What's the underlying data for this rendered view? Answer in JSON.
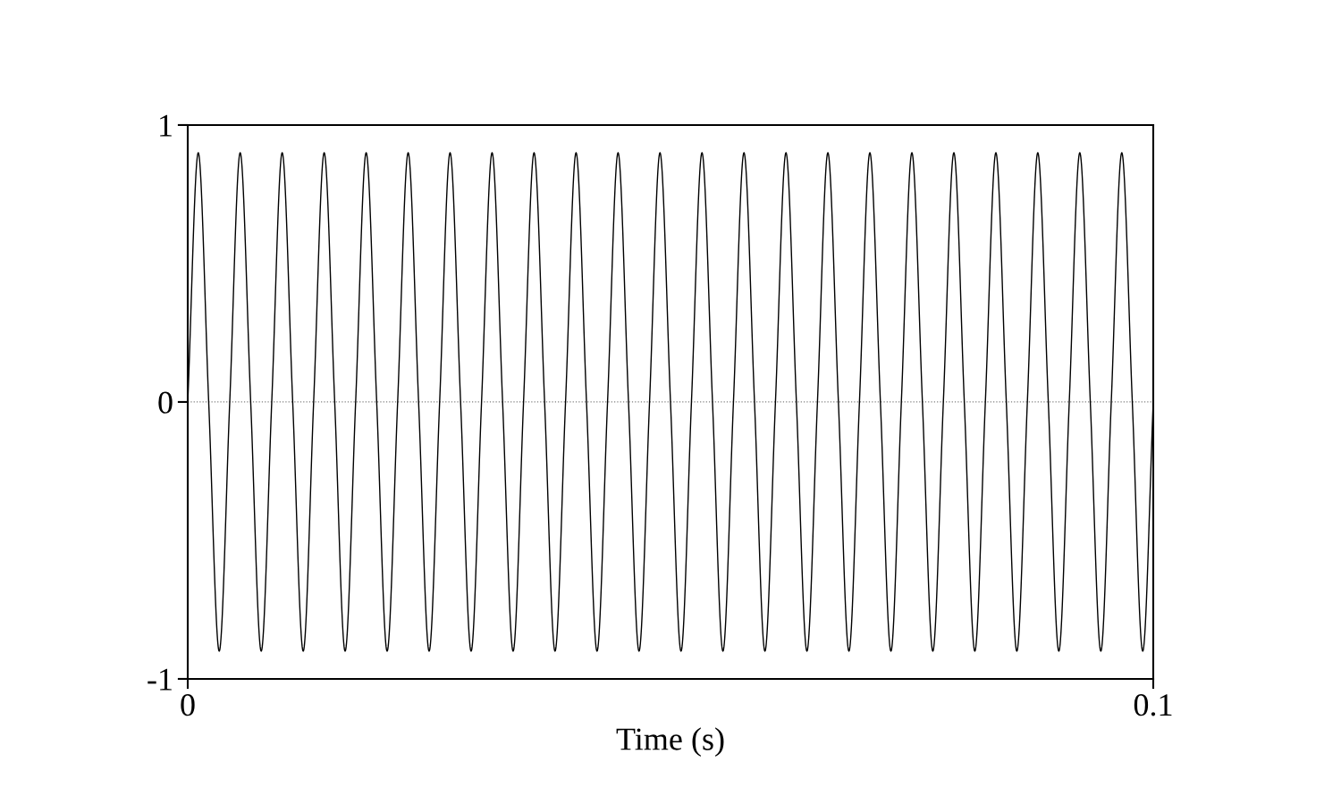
{
  "chart_data": {
    "type": "line",
    "xlabel": "Time (s)",
    "x": [
      0,
      0.00109,
      0.00217,
      0.00326,
      0.00435,
      0.00543,
      0.00652,
      0.00761,
      0.0087,
      0.00978,
      0.01087,
      0.01196,
      0.01304,
      0.01413,
      0.01522,
      0.0163,
      0.01739,
      0.01848,
      0.01957,
      0.02065,
      0.02174,
      0.02283,
      0.02391,
      0.025,
      0.02609,
      0.02717,
      0.02826,
      0.02935,
      0.03043,
      0.03152,
      0.03261,
      0.0337,
      0.03478,
      0.03587,
      0.03696,
      0.03804,
      0.03913,
      0.04022,
      0.0413,
      0.04239,
      0.04348,
      0.04457,
      0.04565,
      0.04674,
      0.04783,
      0.04891,
      0.05,
      0.05109,
      0.05217,
      0.05326,
      0.05435,
      0.05543,
      0.05652,
      0.05761,
      0.0587,
      0.05978,
      0.06087,
      0.06196,
      0.06304,
      0.06413,
      0.06522,
      0.0663,
      0.06739,
      0.06848,
      0.06957,
      0.07065,
      0.07174,
      0.07283,
      0.07391,
      0.075,
      0.07609,
      0.07717,
      0.07826,
      0.07935,
      0.08043,
      0.08152,
      0.08261,
      0.0837,
      0.08478,
      0.08587,
      0.08696,
      0.08804,
      0.08913,
      0.09022,
      0.0913,
      0.09239,
      0.09348,
      0.09457,
      0.09565,
      0.09674,
      0.09783,
      0.09891,
      0.1
    ],
    "series": [
      {
        "color": "#000000",
        "values": [
          0,
          0.9,
          0,
          -0.9,
          0,
          0.9,
          0,
          -0.9,
          0,
          0.9,
          0,
          -0.9,
          0,
          0.9,
          0,
          -0.9,
          0,
          0.9,
          0,
          -0.9,
          0,
          0.9,
          0,
          -0.9,
          0,
          0.9,
          0,
          -0.9,
          0,
          0.9,
          0,
          -0.9,
          0,
          0.9,
          0,
          -0.9,
          0,
          0.9,
          0,
          -0.9,
          0,
          0.9,
          0,
          -0.9,
          0,
          0.9,
          0,
          -0.9,
          0,
          0.9,
          0,
          -0.9,
          0,
          0.9,
          0,
          -0.9,
          0,
          0.9,
          0,
          -0.9,
          0,
          0.9,
          0,
          -0.9,
          0,
          0.9,
          0,
          -0.9,
          0,
          0.9,
          0,
          -0.9,
          0,
          0.9,
          0,
          -0.9,
          0,
          0.9,
          0,
          -0.9,
          0,
          0.9,
          0,
          -0.9,
          0,
          0.9,
          0,
          -0.9,
          0,
          0.9,
          0,
          -0.9,
          0
        ]
      }
    ],
    "xlim": [
      0,
      0.1
    ],
    "xticks": [
      0,
      0.1
    ],
    "ylim": [
      -1,
      1
    ],
    "yticks": [
      -1,
      0,
      1
    ],
    "ref_lines": [
      {
        "axis": "y",
        "value": 0,
        "color": "#808080",
        "line_style": "dotted"
      }
    ],
    "grid": false,
    "legend": false,
    "marker": "none",
    "line_style": "solid"
  }
}
